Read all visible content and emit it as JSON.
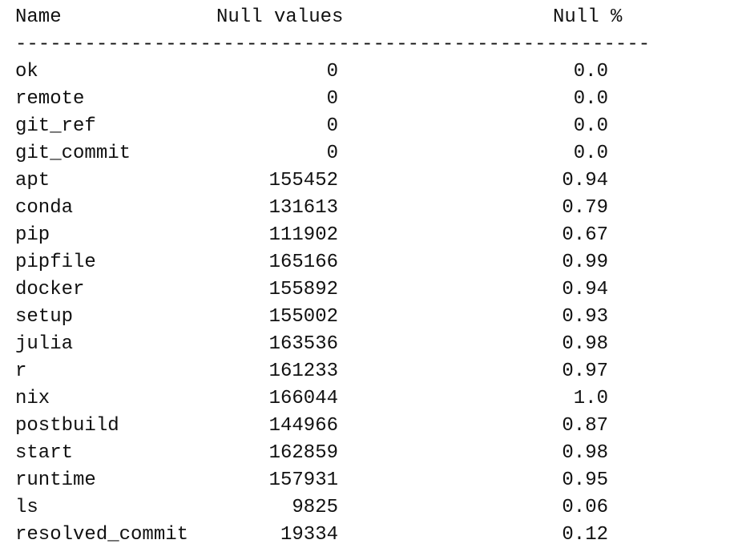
{
  "table": {
    "headers": {
      "name": "Name",
      "nulls": "Null values",
      "pct": "Null %"
    },
    "divider": "-------------------------------------------------------",
    "rows": [
      {
        "name": "ok",
        "nulls": "0",
        "pct": "0.0"
      },
      {
        "name": "remote",
        "nulls": "0",
        "pct": "0.0"
      },
      {
        "name": "git_ref",
        "nulls": "0",
        "pct": "0.0"
      },
      {
        "name": "git_commit",
        "nulls": "0",
        "pct": "0.0"
      },
      {
        "name": "apt",
        "nulls": "155452",
        "pct": "0.94"
      },
      {
        "name": "conda",
        "nulls": "131613",
        "pct": "0.79"
      },
      {
        "name": "pip",
        "nulls": "111902",
        "pct": "0.67"
      },
      {
        "name": "pipfile",
        "nulls": "165166",
        "pct": "0.99"
      },
      {
        "name": "docker",
        "nulls": "155892",
        "pct": "0.94"
      },
      {
        "name": "setup",
        "nulls": "155002",
        "pct": "0.93"
      },
      {
        "name": "julia",
        "nulls": "163536",
        "pct": "0.98"
      },
      {
        "name": "r",
        "nulls": "161233",
        "pct": "0.97"
      },
      {
        "name": "nix",
        "nulls": "166044",
        "pct": "1.0"
      },
      {
        "name": "postbuild",
        "nulls": "144966",
        "pct": "0.87"
      },
      {
        "name": "start",
        "nulls": "162859",
        "pct": "0.98"
      },
      {
        "name": "runtime",
        "nulls": "157931",
        "pct": "0.95"
      },
      {
        "name": "ls",
        "nulls": "9825",
        "pct": "0.06"
      },
      {
        "name": "resolved_commit",
        "nulls": "19334",
        "pct": "0.12"
      }
    ]
  }
}
